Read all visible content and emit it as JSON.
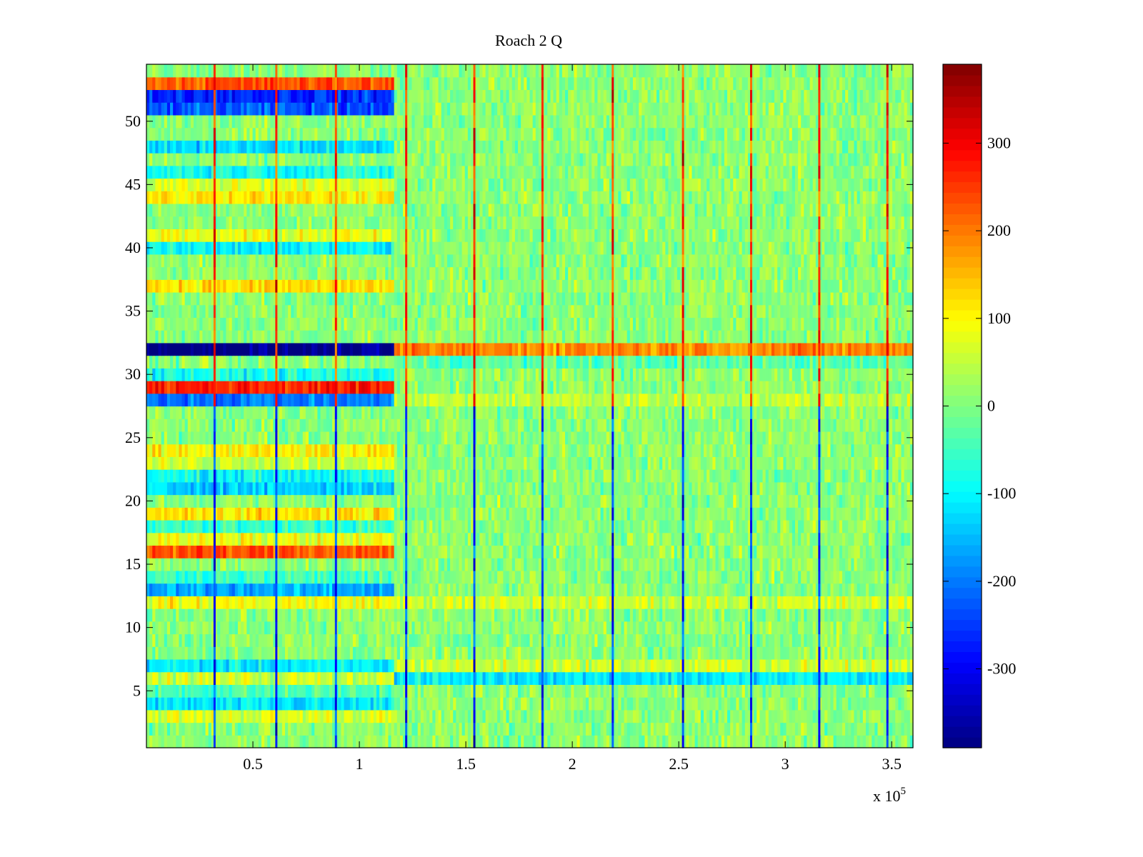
{
  "chart_data": {
    "type": "heatmap",
    "title": "Roach 2 Q",
    "xlabel": "",
    "ylabel": "",
    "x_exponent_label": "x 10",
    "x_exponent_power": "5",
    "xlim": [
      0,
      3.6
    ],
    "ylim": [
      0.5,
      54.5
    ],
    "x_ticks": [
      0.5,
      1,
      1.5,
      2,
      2.5,
      3,
      3.5
    ],
    "x_tick_labels": [
      "0.5",
      "1",
      "1.5",
      "2",
      "2.5",
      "3",
      "3.5"
    ],
    "y_ticks": [
      5,
      10,
      15,
      20,
      25,
      30,
      35,
      40,
      45,
      50
    ],
    "y_tick_labels": [
      "5",
      "10",
      "15",
      "20",
      "25",
      "30",
      "35",
      "40",
      "45",
      "50"
    ],
    "colorbar": {
      "colormap": "jet",
      "clim": [
        -390,
        390
      ],
      "ticks": [
        -300,
        -200,
        -100,
        0,
        100,
        200,
        300
      ],
      "tick_labels": [
        "-300",
        "-200",
        "-100",
        "0",
        "100",
        "200",
        "300"
      ]
    },
    "rows": 54,
    "segment_boundary_x": 1.17,
    "spike_columns_x": [
      0.32,
      0.61,
      0.89,
      1.22,
      1.54,
      1.86,
      2.19,
      2.52,
      2.84,
      3.16,
      3.48
    ],
    "row_means_before_boundary": {
      "53": 230,
      "52": -260,
      "51": -230,
      "48": -120,
      "46": -80,
      "45": 70,
      "44": 110,
      "41": 80,
      "40": -100,
      "37": 120,
      "32": -390,
      "30": -80,
      "29": 270,
      "28": -200,
      "24": 100,
      "23": 60,
      "22": -90,
      "21": -130,
      "19": 120,
      "18": -60,
      "17": 80,
      "16": 230,
      "14": -50,
      "13": -160,
      "12": 90,
      "7": -110,
      "6": 60,
      "5": -40,
      "4": -120,
      "3": 70
    },
    "row_means_after_boundary": {
      "32": 190,
      "31": -30,
      "28": 50,
      "12": 60,
      "7": 60,
      "6": -110
    },
    "background_mean": 10
  }
}
